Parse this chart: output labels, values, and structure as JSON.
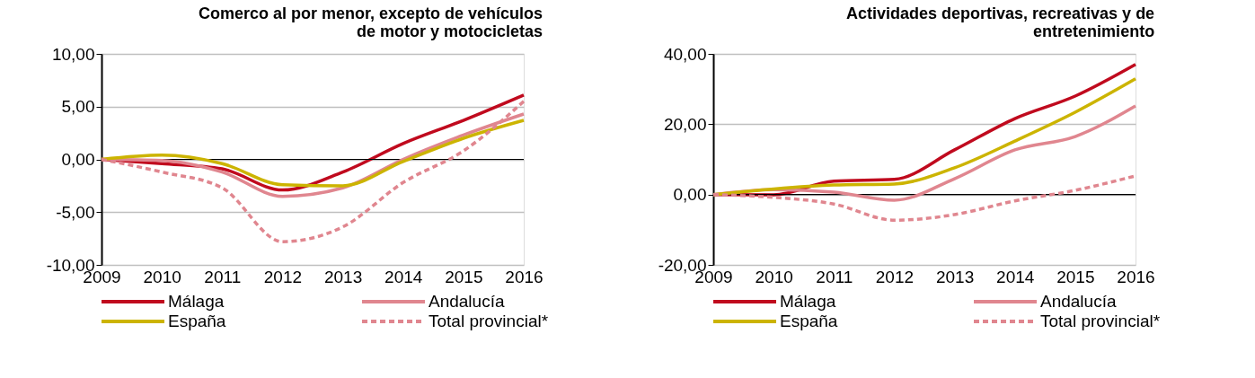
{
  "chart_data": [
    {
      "type": "line",
      "title": "Comerco al por menor, excepto de vehículos de motor y motocicletas",
      "x": [
        2009,
        2010,
        2011,
        2012,
        2013,
        2014,
        2015,
        2016
      ],
      "xlim": [
        2009,
        2016
      ],
      "xticks": [
        2009,
        2010,
        2011,
        2012,
        2013,
        2014,
        2015,
        2016
      ],
      "ylim": [
        -10,
        10
      ],
      "yticks": [
        {
          "value": -10,
          "label": "-10,00"
        },
        {
          "value": -5,
          "label": "-5,00"
        },
        {
          "value": 0,
          "label": "0,00"
        },
        {
          "value": 5,
          "label": "5,00"
        },
        {
          "value": 10,
          "label": "10,00"
        }
      ],
      "grid": "y",
      "legend": "bottom",
      "ref_lines": [
        {
          "axis": "y",
          "value": 0,
          "color": "#000000"
        }
      ],
      "series": [
        {
          "name": "Málaga",
          "color": "#c00a1e",
          "line_style": "solid",
          "values": [
            0,
            -0.4,
            -0.9,
            -2.9,
            -1.2,
            1.5,
            3.7,
            6.1
          ]
        },
        {
          "name": "Andalucía",
          "color": "#e0868f",
          "line_style": "solid",
          "values": [
            0,
            -0.1,
            -1.2,
            -3.5,
            -2.7,
            0,
            2.3,
            4.3
          ]
        },
        {
          "name": "España",
          "color": "#ccb400",
          "line_style": "solid",
          "values": [
            0,
            0.4,
            -0.4,
            -2.4,
            -2.5,
            -0.2,
            2.0,
            3.7
          ]
        },
        {
          "name": "Total provincial*",
          "color": "#e0868f",
          "line_style": "dashed",
          "values": [
            0,
            -1.2,
            -2.7,
            -7.8,
            -6.4,
            -2.2,
            0.8,
            5.5
          ]
        }
      ]
    },
    {
      "type": "line",
      "title": "Actividades deportivas, recreativas y de entretenimiento",
      "x": [
        2009,
        2010,
        2011,
        2012,
        2013,
        2014,
        2015,
        2016
      ],
      "xlim": [
        2009,
        2016
      ],
      "xticks": [
        2009,
        2010,
        2011,
        2012,
        2013,
        2014,
        2015,
        2016
      ],
      "ylim": [
        -20,
        40
      ],
      "yticks": [
        {
          "value": -20,
          "label": "-20,00"
        },
        {
          "value": 0,
          "label": "0,00"
        },
        {
          "value": 20,
          "label": "20,00"
        },
        {
          "value": 40,
          "label": "40,00"
        }
      ],
      "grid": "y",
      "legend": "bottom",
      "ref_lines": [
        {
          "axis": "y",
          "value": 0,
          "color": "#000000"
        }
      ],
      "series": [
        {
          "name": "Málaga",
          "color": "#c00a1e",
          "line_style": "solid",
          "values": [
            0,
            -0.1,
            3.8,
            4.3,
            12.7,
            21.6,
            28,
            37
          ]
        },
        {
          "name": "Andalucía",
          "color": "#e0868f",
          "line_style": "solid",
          "values": [
            0,
            1.4,
            0.7,
            -1.6,
            4.5,
            12.7,
            16.5,
            25.2
          ]
        },
        {
          "name": "España",
          "color": "#ccb400",
          "line_style": "solid",
          "values": [
            0,
            1.6,
            2.7,
            3.0,
            7.6,
            15.2,
            23.4,
            32.9
          ]
        },
        {
          "name": "Total provincial*",
          "color": "#e0868f",
          "line_style": "dashed",
          "values": [
            0,
            -0.8,
            -2.7,
            -7.3,
            -5.7,
            -1.8,
            1.2,
            5.3
          ]
        }
      ]
    }
  ]
}
